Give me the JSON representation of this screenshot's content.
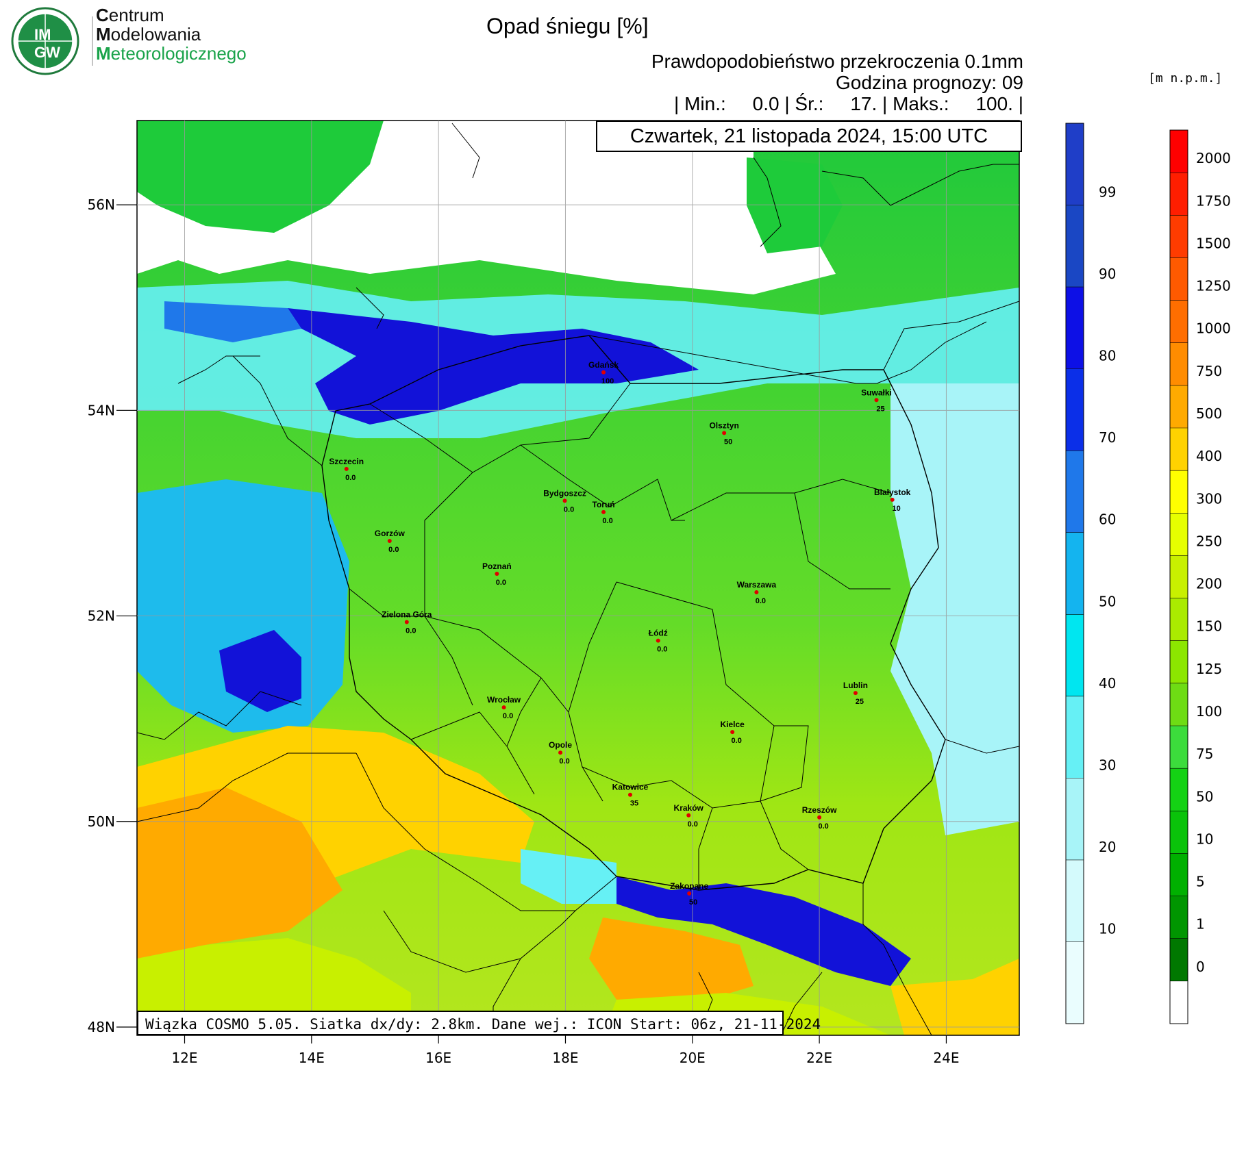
{
  "header": {
    "logo_initials": "IMGW",
    "logo_top": "IM",
    "logo_bottom": "GW",
    "logo_lines": [
      {
        "cap": "C",
        "rest": "entrum"
      },
      {
        "cap": "M",
        "rest": "odelowania"
      },
      {
        "cap": "M",
        "rest": "eteorologicznego"
      }
    ],
    "title": "Opad śniegu [%]",
    "subtitle": "Prawdopodobieństwo przekroczenia 0.1mm",
    "forecast_hour": "Godzina prognozy: 09",
    "stats": "| Min.:     0.0 | Śr.:     17. | Maks.:     100. |",
    "date": "Czwartek, 21 listopada 2024, 15:00 UTC"
  },
  "footer": {
    "model_info": "Wiązka COSMO 5.05. Siatka dx/dy: 2.8km. Dane wej.: ICON Start: 06z, 21-11-2024"
  },
  "axes": {
    "lat_labels": [
      "56N",
      "54N",
      "52N",
      "50N",
      "48N"
    ],
    "lon_labels": [
      "12E",
      "14E",
      "16E",
      "18E",
      "20E",
      "22E",
      "24E"
    ]
  },
  "snow_colorbar": {
    "labels": [
      "99",
      "90",
      "80",
      "70",
      "60",
      "50",
      "40",
      "30",
      "20",
      "10"
    ],
    "colors": [
      "#1f3ec8",
      "#1a47c4",
      "#0d10e6",
      "#0b2fe8",
      "#1f78ea",
      "#14b4ef",
      "#00e6f0",
      "#66f0f5",
      "#a8f4f8",
      "#d4fafc",
      "#eafdfe"
    ]
  },
  "elevation_colorbar": {
    "unit": "[m n.p.m.]",
    "labels": [
      "2000",
      "1750",
      "1500",
      "1250",
      "1000",
      "750",
      "500",
      "400",
      "300",
      "250",
      "200",
      "150",
      "125",
      "100",
      "75",
      "50",
      "10",
      "5",
      "1",
      "0"
    ],
    "colors": [
      "#ff0000",
      "#ff1e00",
      "#ff3c00",
      "#ff5a00",
      "#ff6e00",
      "#ff8c00",
      "#ffaa00",
      "#ffd200",
      "#ffff00",
      "#e6ff00",
      "#c8f000",
      "#aaeb00",
      "#8ce600",
      "#6edc14",
      "#3cdc3c",
      "#14d214",
      "#0ac30a",
      "#00b000",
      "#009600",
      "#007800",
      "#ffffff"
    ]
  },
  "cities": [
    {
      "name": "Gdańsk",
      "value": "100",
      "lon": 18.6,
      "lat": 54.37
    },
    {
      "name": "Suwałki",
      "value": "25",
      "lon": 22.9,
      "lat": 54.1
    },
    {
      "name": "Olsztyn",
      "value": "50",
      "lon": 20.5,
      "lat": 53.78
    },
    {
      "name": "Szczecin",
      "value": "0.0",
      "lon": 14.55,
      "lat": 53.43
    },
    {
      "name": "Bydgoszcz",
      "value": "0.0",
      "lon": 17.99,
      "lat": 53.12
    },
    {
      "name": "Toruń",
      "value": "0.0",
      "lon": 18.6,
      "lat": 53.01
    },
    {
      "name": "Białystok",
      "value": "10",
      "lon": 23.15,
      "lat": 53.13
    },
    {
      "name": "Gorzów",
      "value": "0.0",
      "lon": 15.23,
      "lat": 52.73
    },
    {
      "name": "Poznań",
      "value": "0.0",
      "lon": 16.92,
      "lat": 52.41
    },
    {
      "name": "Warszawa",
      "value": "0.0",
      "lon": 21.01,
      "lat": 52.23
    },
    {
      "name": "Zielona Góra",
      "value": "0.0",
      "lon": 15.5,
      "lat": 51.94
    },
    {
      "name": "Łódź",
      "value": "0.0",
      "lon": 19.46,
      "lat": 51.76
    },
    {
      "name": "Lublin",
      "value": "25",
      "lon": 22.57,
      "lat": 51.25
    },
    {
      "name": "Wrocław",
      "value": "0.0",
      "lon": 17.03,
      "lat": 51.11
    },
    {
      "name": "Kielce",
      "value": "0.0",
      "lon": 20.63,
      "lat": 50.87
    },
    {
      "name": "Opole",
      "value": "0.0",
      "lon": 17.92,
      "lat": 50.67
    },
    {
      "name": "Katowice",
      "value": "35",
      "lon": 19.02,
      "lat": 50.26
    },
    {
      "name": "Kraków",
      "value": "0.0",
      "lon": 19.94,
      "lat": 50.06
    },
    {
      "name": "Rzeszów",
      "value": "0.0",
      "lon": 22.0,
      "lat": 50.04
    },
    {
      "name": "Zakopane",
      "value": "50",
      "lon": 19.95,
      "lat": 49.3
    }
  ]
}
